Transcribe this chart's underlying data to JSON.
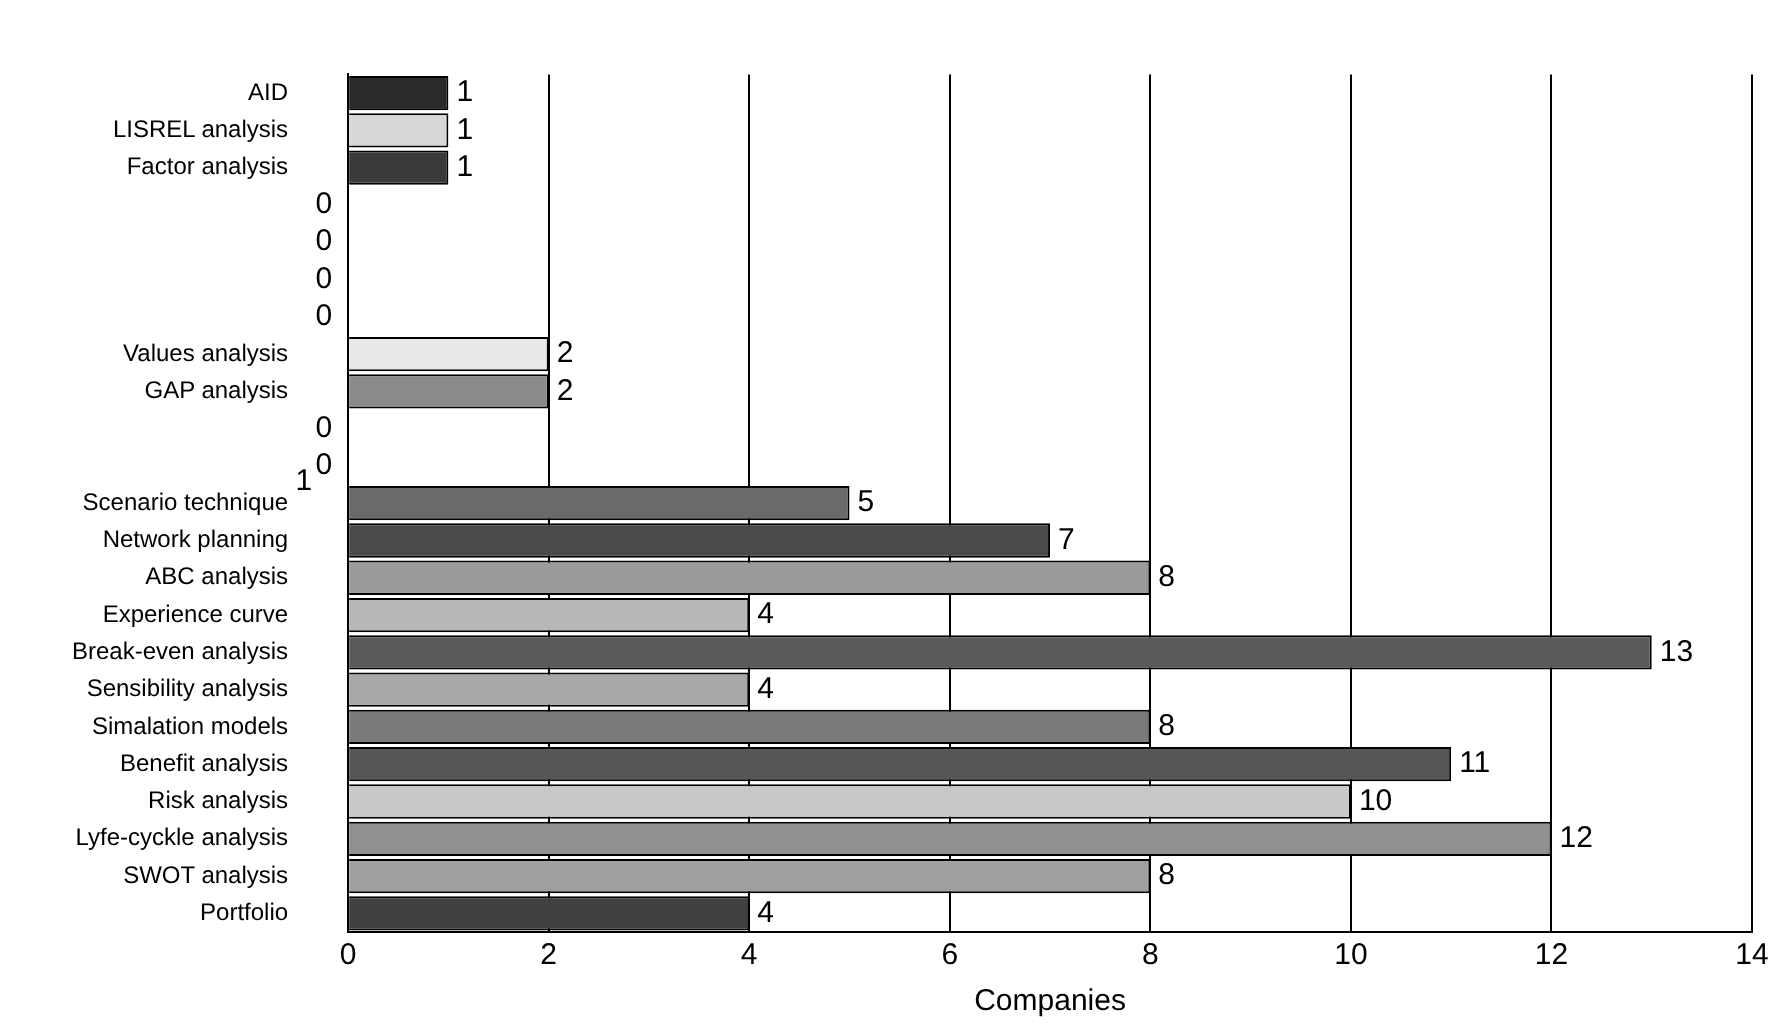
{
  "chart_data": {
    "type": "bar",
    "orientation": "horizontal",
    "categories": [
      "AID",
      "LISREL analysis",
      "Factor analysis",
      null,
      null,
      null,
      null,
      "Values analysis",
      "GAP analysis",
      null,
      null,
      "Scenario technique",
      "Network planning",
      "ABC analysis",
      "Experience curve",
      "Break-even analysis",
      "Sensibility analysis",
      "Simalation models",
      "Benefit analysis",
      "Risk analysis",
      "Lyfe-cyckle analysis",
      "SWOT analysis",
      "Portfolio"
    ],
    "values": [
      1,
      1,
      1,
      0,
      0,
      0,
      0,
      2,
      2,
      0,
      0,
      5,
      7,
      8,
      4,
      13,
      4,
      8,
      11,
      10,
      12,
      8,
      4
    ],
    "colors": [
      "#2a2a2a",
      "#d8d8d8",
      "#3a3a3a",
      "#000000",
      "#000000",
      "#000000",
      "#000000",
      "#e8e8e8",
      "#8a8a8a",
      "#000000",
      "#000000",
      "#6a6a6a",
      "#4a4a4a",
      "#9a9a9a",
      "#b8b8b8",
      "#5a5a5a",
      "#a8a8a8",
      "#7a7a7a",
      "#555555",
      "#c8c8c8",
      "#909090",
      "#a0a0a0",
      "#404040"
    ],
    "xlabel": "Companies",
    "xlim": [
      0,
      14
    ],
    "xticks": [
      0,
      2,
      4,
      6,
      8,
      10,
      12,
      14
    ],
    "grid": "x",
    "data_labels": true,
    "annotations": [
      "1"
    ]
  }
}
